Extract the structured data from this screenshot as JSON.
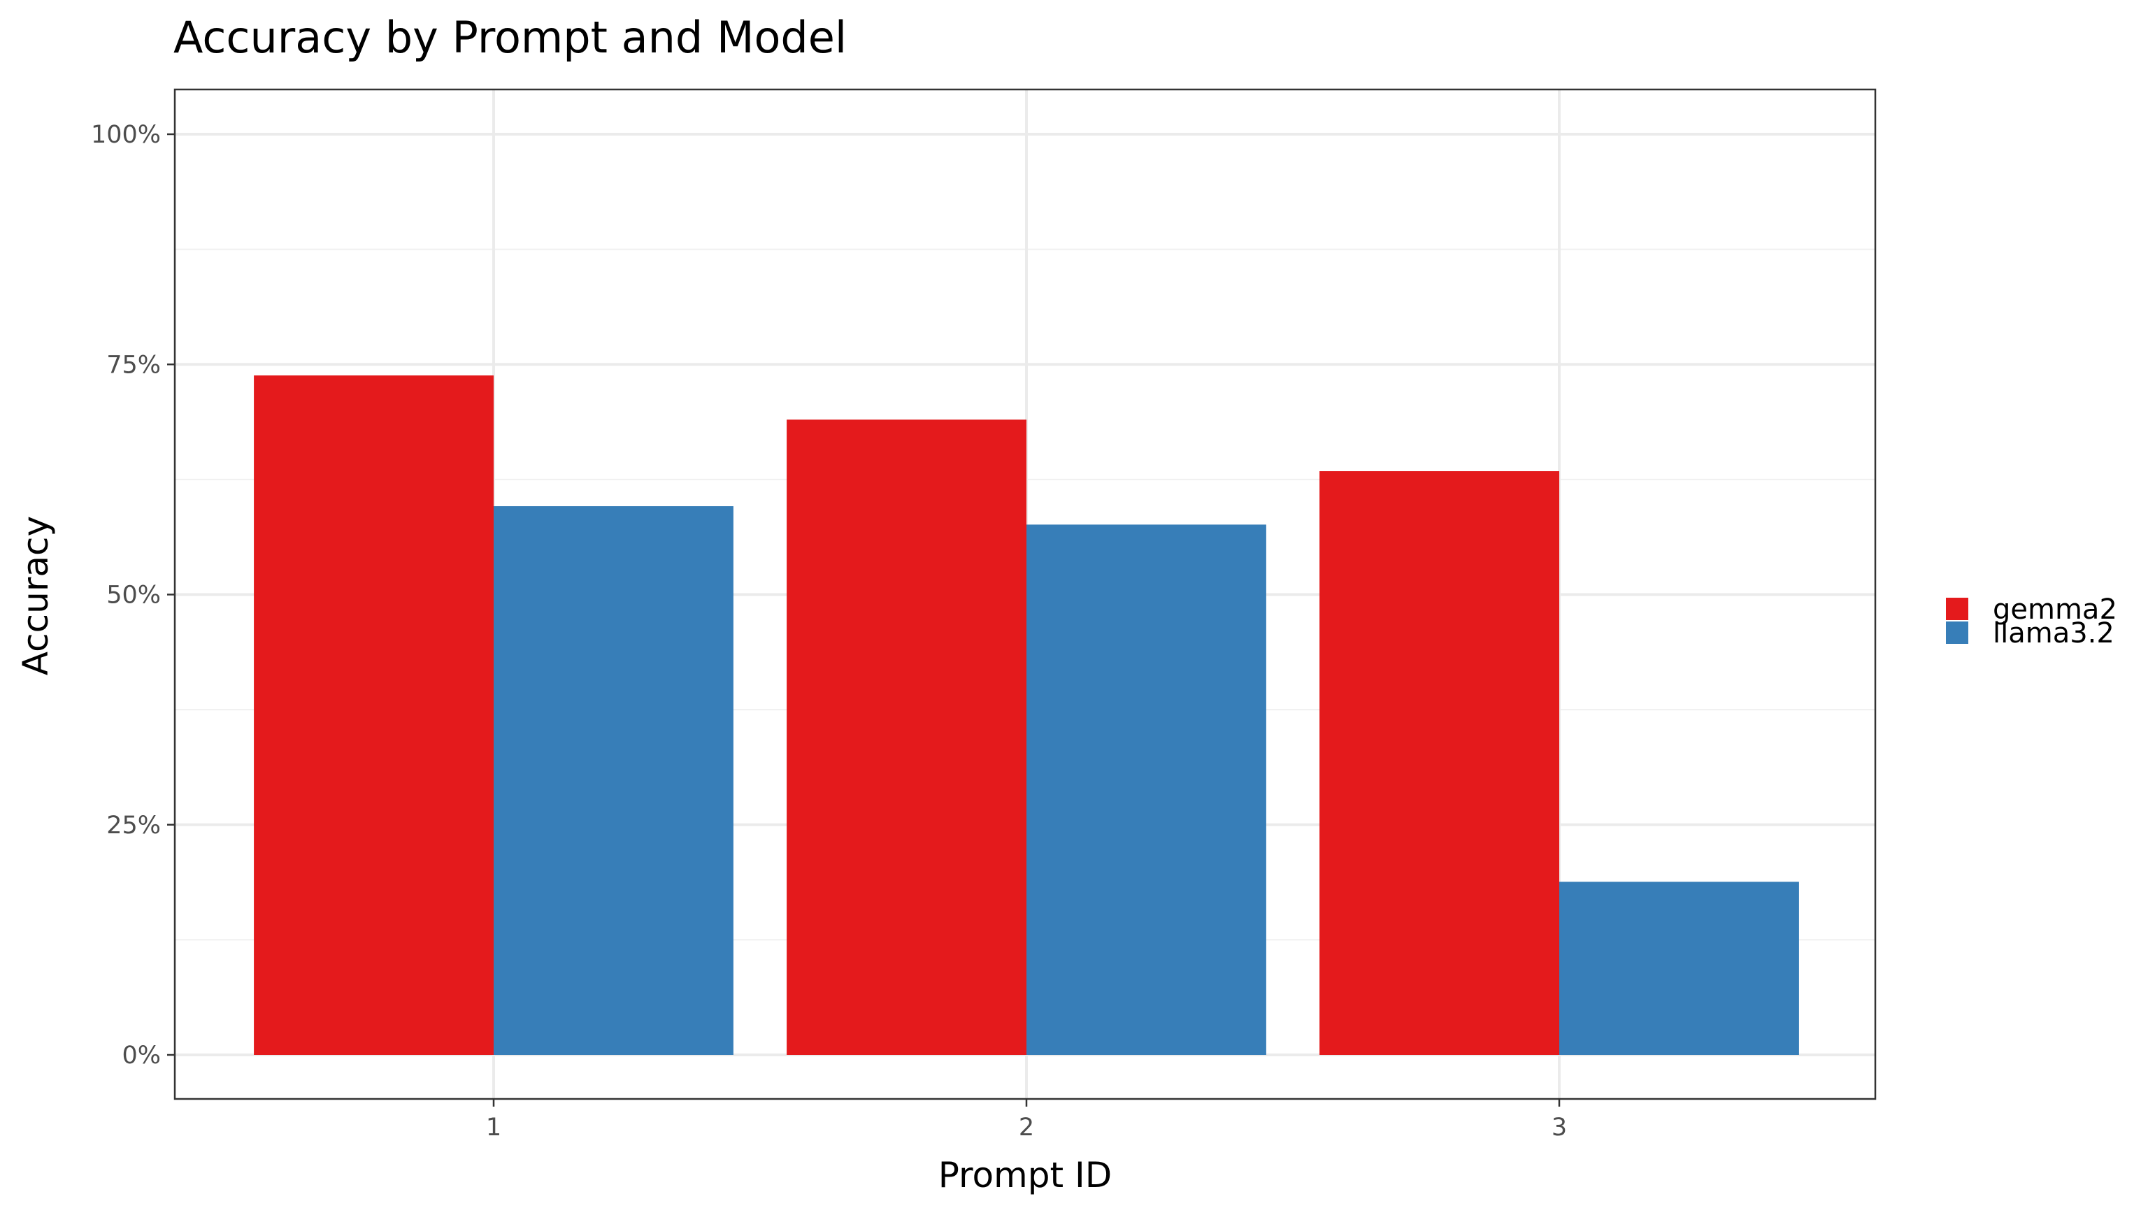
{
  "chart_data": {
    "type": "bar",
    "title": "Accuracy by Prompt and Model",
    "xlabel": "Prompt ID",
    "ylabel": "Accuracy",
    "categories": [
      "1",
      "2",
      "3"
    ],
    "series": [
      {
        "name": "gemma2",
        "color": "#e41a1c",
        "values": [
          0.738,
          0.69,
          0.634
        ]
      },
      {
        "name": "llama3.2",
        "color": "#377eb8",
        "values": [
          0.596,
          0.576,
          0.188
        ]
      }
    ],
    "ylim": [
      0,
      1
    ],
    "yticks": [
      {
        "value": 0,
        "label": "0%"
      },
      {
        "value": 0.25,
        "label": "25%"
      },
      {
        "value": 0.5,
        "label": "50%"
      },
      {
        "value": 0.75,
        "label": "75%"
      },
      {
        "value": 1,
        "label": "100%"
      }
    ],
    "grid": true,
    "legend_position": "right"
  }
}
